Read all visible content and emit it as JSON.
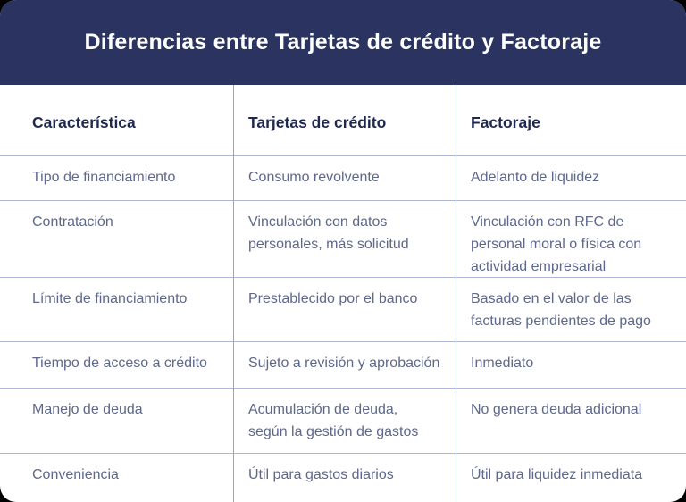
{
  "title": "Diferencias entre Tarjetas de crédito y Factoraje",
  "colors": {
    "page_background": "#000000",
    "card_background": "#ffffff",
    "title_bar_background": "#2b3460",
    "title_text": "#ffffff",
    "column_header_text": "#1f2850",
    "body_text": "#5e688c",
    "row_divider": "#aeb6d6",
    "column_divider": "#9aa4c9"
  },
  "chart_data": {
    "type": "table",
    "title": "Diferencias entre Tarjetas de crédito y Factoraje",
    "columns": [
      "Característica",
      "Tarjetas de crédito",
      "Factoraje"
    ],
    "rows": [
      [
        "Tipo de financiamiento",
        "Consumo revolvente",
        "Adelanto de liquidez"
      ],
      [
        "Contratación",
        "Vinculación con datos\npersonales, más solicitud",
        "Vinculación con RFC de\npersonal moral o física con\nactividad empresarial"
      ],
      [
        "Límite de financiamiento",
        "Prestablecido por el banco",
        "Basado en el valor de las\nfacturas pendientes de pago"
      ],
      [
        "Tiempo de acceso a crédito",
        "Sujeto a revisión y aprobación",
        "Inmediato"
      ],
      [
        "Manejo de deuda",
        "Acumulación de deuda,\nsegún la gestión de gastos",
        "No genera deuda adicional"
      ],
      [
        "Conveniencia",
        "Útil para gastos diarios",
        "Útil para liquidez inmediata"
      ]
    ]
  }
}
